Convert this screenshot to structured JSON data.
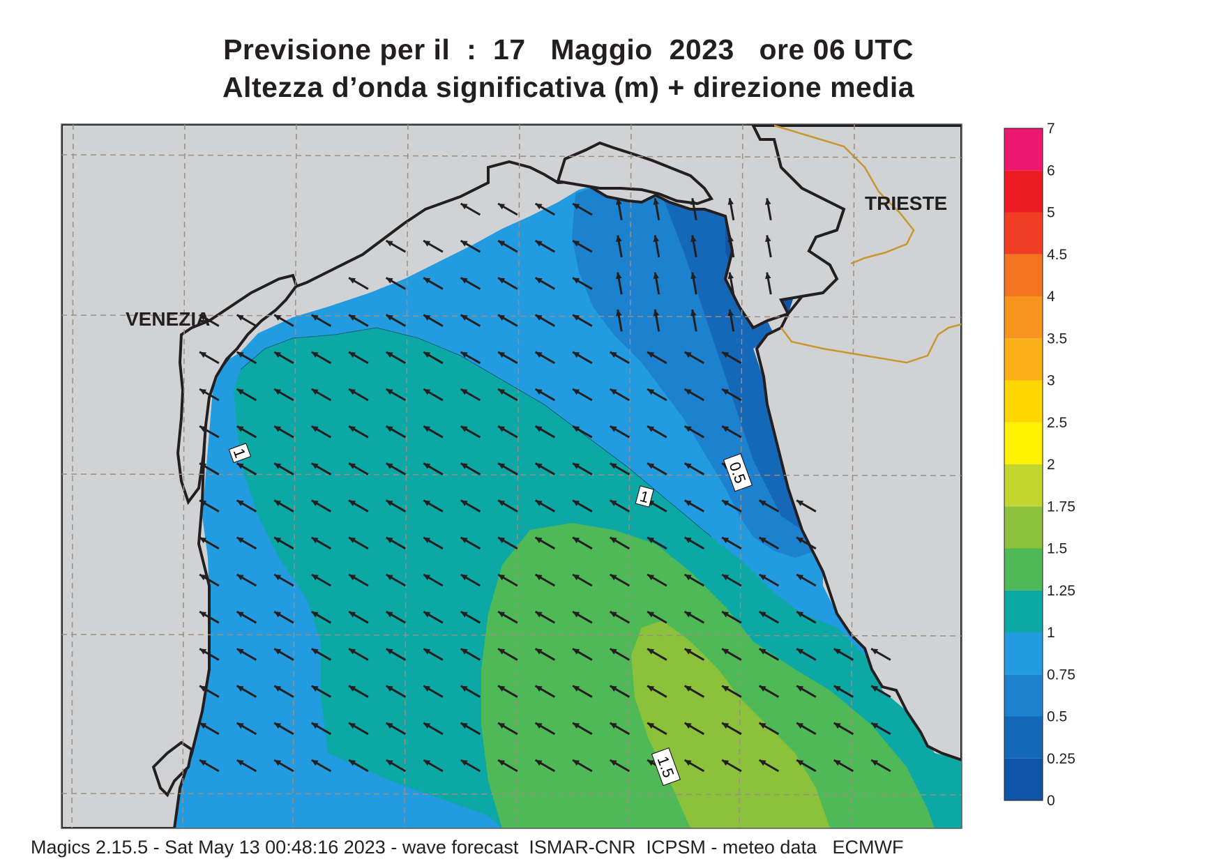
{
  "title": {
    "line1": "Previsione per il  :  17   Maggio  2023   ore 06 UTC",
    "line2": "Altezza d’onda significativa (m) + direzione media"
  },
  "footer": "Magics 2.15.5 - Sat May 13 00:48:16 2023 - wave forecast  ISMAR-CNR  ICPSM - meteo data   ECMWF",
  "places": {
    "venezia": "VENEZIA",
    "trieste": "TRIESTE"
  },
  "contour_labels": [
    "1",
    "1",
    "0.5",
    "1.5"
  ],
  "colorbar": {
    "labels": [
      "0",
      "0.25",
      "0.5",
      "0.75",
      "1",
      "1.25",
      "1.5",
      "1.75",
      "2",
      "2.5",
      "3",
      "3.5",
      "4",
      "4.5",
      "5",
      "6",
      "7"
    ],
    "colors": [
      "#1155a9",
      "#1567b8",
      "#1c82cf",
      "#239be0",
      "#0ca8a6",
      "#4fb857",
      "#8bc13b",
      "#c2d531",
      "#fff200",
      "#ffd600",
      "#fbb019",
      "#f7941e",
      "#f37321",
      "#ef3e23",
      "#ed1b24",
      "#ec1770"
    ]
  },
  "map_colors": {
    "land": "#d1d2d4",
    "coast": "#231f20",
    "border": "#c8962e",
    "grid": "#9a8f80"
  },
  "wave_direction": "NW"
}
